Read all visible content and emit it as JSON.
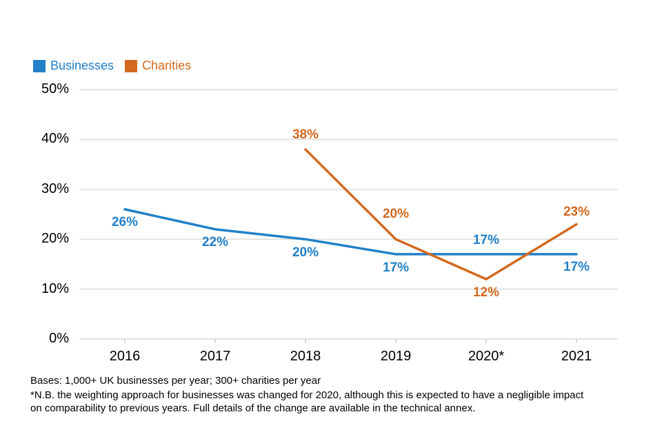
{
  "chart_data": {
    "type": "line",
    "categories": [
      "2016",
      "2017",
      "2018",
      "2019",
      "2020*",
      "2021"
    ],
    "ylim": [
      0,
      50
    ],
    "yticks": [
      0,
      10,
      20,
      30,
      40,
      50
    ],
    "ytick_suffix": "%",
    "grid": true,
    "legend_position": "top-left",
    "gridline_color": "#d9d9d9",
    "tick_color": "#bfbfbf",
    "axis_text_color": "#000000",
    "data_label_suffix": "%",
    "series": [
      {
        "name": "Businesses",
        "color": "#2280c8",
        "values": [
          26,
          22,
          20,
          17,
          17,
          17
        ],
        "label_dy": [
          19,
          19,
          20,
          20,
          -20,
          19
        ]
      },
      {
        "name": "Charities",
        "color": "#d2691e",
        "values": [
          null,
          null,
          38,
          20,
          12,
          23
        ],
        "label_dy": [
          null,
          null,
          -21,
          -36,
          20,
          -17
        ]
      }
    ]
  },
  "footer": {
    "bases": "Bases: 1,000+ UK businesses per year; 300+ charities per year",
    "note_line1": "*N.B. the weighting approach for businesses was changed for 2020, although this is expected to have a negligible impact",
    "note_line2": "on comparability to previous years. Full details of the change are available in the technical annex."
  }
}
